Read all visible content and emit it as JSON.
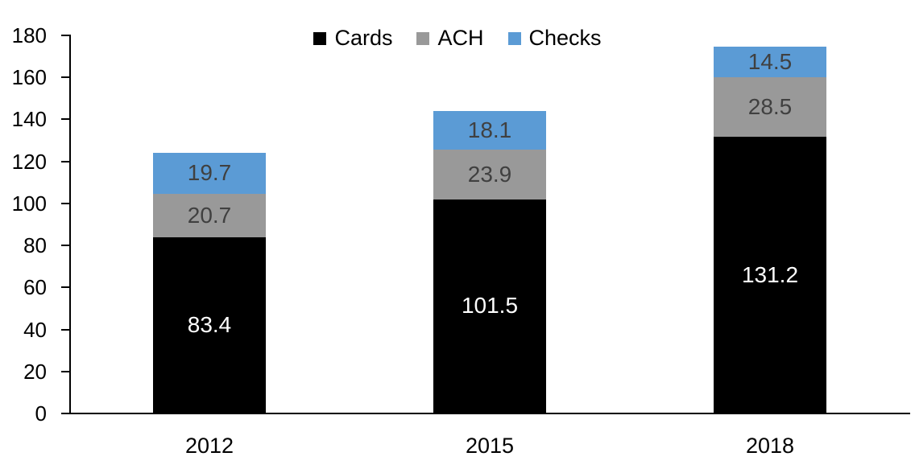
{
  "chart_data": {
    "type": "bar",
    "stacked": true,
    "title": "",
    "xlabel": "",
    "ylabel": "",
    "categories": [
      "2012",
      "2015",
      "2018"
    ],
    "series": [
      {
        "name": "Cards",
        "color": "#000000",
        "label_color": "#ffffff",
        "values": [
          83.4,
          101.5,
          131.2
        ]
      },
      {
        "name": "ACH",
        "color": "#999999",
        "label_color": "#404040",
        "values": [
          20.7,
          23.9,
          28.5
        ]
      },
      {
        "name": "Checks",
        "color": "#5B9BD5",
        "label_color": "#404040",
        "values": [
          19.7,
          18.1,
          14.5
        ]
      }
    ],
    "ylim": [
      0,
      180
    ],
    "yticks": [
      0,
      20,
      40,
      60,
      80,
      100,
      120,
      140,
      160,
      180
    ],
    "grid": false,
    "legend_position": "top",
    "axis_color": "#000000",
    "data_labels_visible": true
  }
}
